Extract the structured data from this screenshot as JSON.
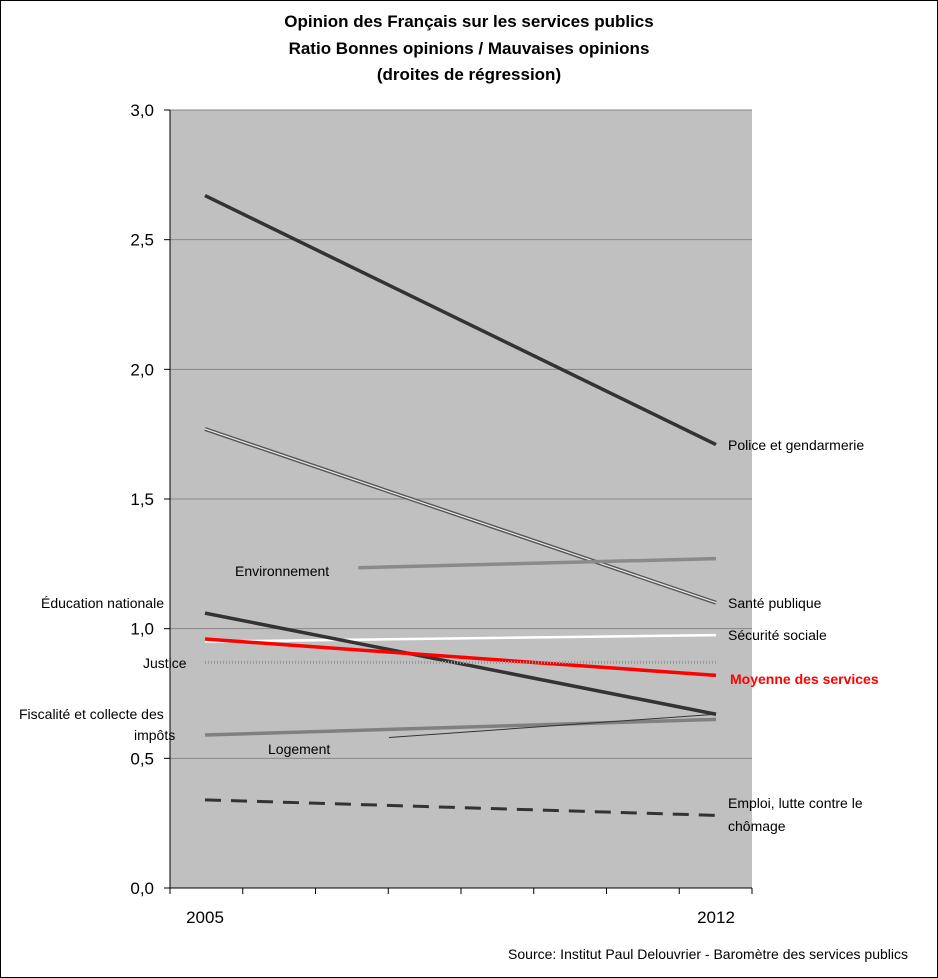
{
  "chart_data": {
    "type": "line",
    "title": [
      "Opinion des Français sur les services publics",
      "Ratio Bonnes opinions / Mauvaises opinions",
      "(droites de régression)"
    ],
    "x_ticks": [
      "2005",
      "2012"
    ],
    "y_ticks": [
      "0,0",
      "0,5",
      "1,0",
      "1,5",
      "2,0",
      "2,5",
      "3,0"
    ],
    "ylim": [
      0,
      3
    ],
    "grid": true,
    "series": [
      {
        "name": "Police et gendarmerie",
        "start": 2.67,
        "end": 1.71,
        "color": "#333333",
        "style": "solid-thick"
      },
      {
        "name": "Santé publique",
        "start": 1.77,
        "end": 1.1,
        "color": "#555555",
        "style": "double"
      },
      {
        "name": "Environnement",
        "start": 1.22,
        "end": 1.27,
        "color": "#8a8a8a",
        "style": "solid-thick",
        "start_frac": 0.3
      },
      {
        "name": "Sécurité sociale",
        "start": 0.95,
        "end": 0.975,
        "color": "#ffffff",
        "style": "solid"
      },
      {
        "name": "Éducation nationale",
        "start": 1.06,
        "end": 0.67,
        "color": "#333333",
        "style": "solid-thick"
      },
      {
        "name": "Moyenne des services",
        "start": 0.96,
        "end": 0.82,
        "color": "#ff0000",
        "style": "solid-thick"
      },
      {
        "name": "Justice",
        "start": 0.87,
        "end": 0.87,
        "color": "#999999",
        "style": "dotted"
      },
      {
        "name": "Fiscalité et collecte des impôts",
        "start": 0.59,
        "end": 0.65,
        "color": "#808080",
        "style": "solid-thick"
      },
      {
        "name": "Logement",
        "start": 0.53,
        "end": 0.67,
        "color": "#333333",
        "style": "thin",
        "start_frac": 0.36
      },
      {
        "name": "Emploi, lutte contre le chômage",
        "start": 0.34,
        "end": 0.28,
        "color": "#333333",
        "style": "dashed"
      }
    ],
    "labels": {
      "police": "Police et gendarmerie",
      "sante": "Santé publique",
      "environnement": "Environnement",
      "securite": "Sécurité sociale",
      "education": "Éducation nationale",
      "moyenne": "Moyenne des services",
      "justice": "Justice",
      "fiscalite_1": "Fiscalité et collecte des",
      "fiscalite_2": "impôts",
      "logement": "Logement",
      "emploi_1": "Emploi, lutte contre le",
      "emploi_2": "chômage"
    },
    "source": "Source: Institut Paul Delouvrier - Baromètre des services publics"
  }
}
